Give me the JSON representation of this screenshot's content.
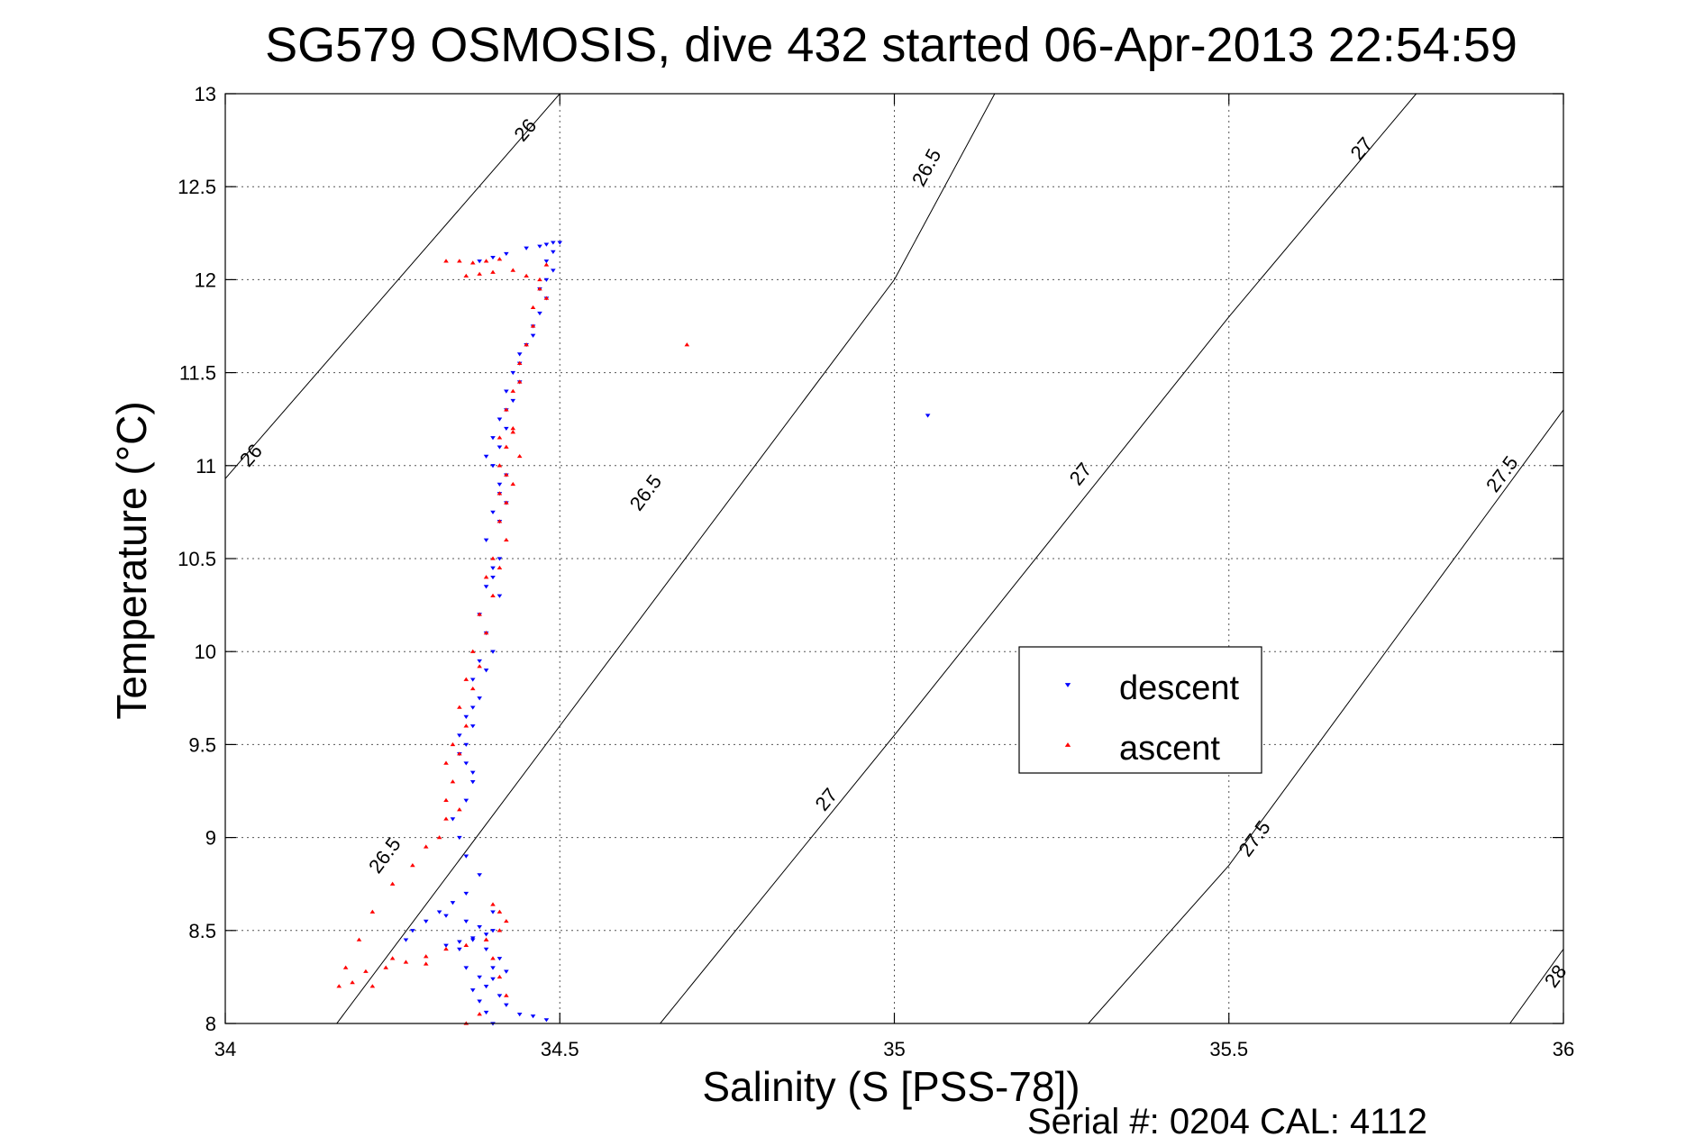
{
  "chart_data": {
    "type": "scatter",
    "title": "SG579 OSMOSIS, dive 432 started 06-Apr-2013 22:54:59",
    "xlabel": "Salinity (S [PSS-78])",
    "ylabel": "Temperature (°C)",
    "xlim": [
      34,
      36
    ],
    "ylim": [
      8,
      13
    ],
    "xticks": [
      34,
      34.5,
      35,
      35.5,
      36
    ],
    "xtick_labels": [
      "34",
      "34.5",
      "35",
      "35.5",
      "36"
    ],
    "yticks": [
      8,
      8.5,
      9,
      9.5,
      10,
      10.5,
      11,
      11.5,
      12,
      12.5,
      13
    ],
    "ytick_labels": [
      "8",
      "8.5",
      "9",
      "9.5",
      "10",
      "10.5",
      "11",
      "11.5",
      "12",
      "12.5",
      "13"
    ],
    "grid": true,
    "legend_position": "center-right",
    "footer": "Serial #: 0204  CAL: 4112",
    "density_contours": [
      {
        "label": "26",
        "points": [
          [
            34.0,
            10.93
          ],
          [
            34.5,
            13.0
          ]
        ],
        "label_positions": [
          [
            34.04,
            11.05
          ],
          [
            34.45,
            12.8
          ]
        ]
      },
      {
        "label": "26.5",
        "points": [
          [
            34.0,
            7.2
          ],
          [
            34.5,
            9.6
          ],
          [
            35.0,
            12.0
          ],
          [
            35.15,
            13.0
          ]
        ],
        "label_positions": [
          [
            34.24,
            8.9
          ],
          [
            34.63,
            10.85
          ],
          [
            35.05,
            12.6
          ]
        ]
      },
      {
        "label": "27",
        "points": [
          [
            34.65,
            8.0
          ],
          [
            35.0,
            9.55
          ],
          [
            35.5,
            11.8
          ],
          [
            35.78,
            13.0
          ]
        ],
        "label_positions": [
          [
            34.9,
            9.2
          ],
          [
            35.28,
            10.95
          ],
          [
            35.7,
            12.7
          ]
        ]
      },
      {
        "label": "27.5",
        "points": [
          [
            35.29,
            8.0
          ],
          [
            35.5,
            8.85
          ],
          [
            36.0,
            11.3
          ]
        ],
        "label_positions": [
          [
            35.54,
            8.99
          ],
          [
            35.91,
            10.95
          ]
        ]
      },
      {
        "label": "28",
        "points": [
          [
            35.92,
            8.0
          ],
          [
            36.0,
            8.4
          ]
        ],
        "label_positions": [
          [
            35.99,
            8.25
          ]
        ]
      }
    ],
    "series": [
      {
        "name": "descent",
        "color": "#0000ff",
        "marker": "triangle-down",
        "x": [
          34.5,
          34.49,
          34.48,
          34.47,
          34.45,
          34.42,
          34.4,
          34.38,
          34.49,
          34.48,
          34.49,
          34.48,
          34.47,
          34.48,
          34.47,
          34.46,
          34.46,
          34.45,
          34.44,
          34.44,
          34.43,
          34.44,
          34.42,
          34.43,
          34.42,
          34.41,
          34.42,
          34.4,
          34.41,
          34.39,
          34.4,
          34.42,
          34.41,
          34.41,
          34.42,
          34.4,
          34.41,
          34.39,
          34.41,
          34.4,
          34.4,
          34.39,
          34.41,
          34.38,
          34.39,
          34.4,
          34.38,
          34.39,
          34.37,
          34.38,
          34.37,
          34.36,
          34.37,
          34.35,
          34.36,
          34.35,
          34.36,
          34.37,
          34.37,
          34.36,
          34.34,
          34.35,
          34.36,
          34.38,
          34.36,
          34.34,
          34.32,
          34.3,
          34.28,
          34.27,
          34.33,
          34.35,
          34.37,
          34.39,
          34.4,
          34.36,
          34.33,
          34.4,
          34.38,
          34.37,
          34.39,
          34.41,
          34.4,
          34.38,
          34.39,
          34.41,
          34.42,
          34.44,
          34.46,
          34.48,
          34.4,
          34.39,
          34.38,
          34.37,
          34.36,
          34.35,
          34.42,
          34.4,
          35.05
        ],
        "y": [
          12.2,
          12.2,
          12.19,
          12.18,
          12.17,
          12.14,
          12.12,
          12.1,
          12.15,
          12.1,
          12.05,
          12.0,
          11.95,
          11.9,
          11.82,
          11.75,
          11.7,
          11.65,
          11.6,
          11.55,
          11.5,
          11.45,
          11.4,
          11.35,
          11.3,
          11.25,
          11.2,
          11.15,
          11.1,
          11.05,
          11.0,
          10.95,
          10.9,
          10.85,
          10.8,
          10.75,
          10.7,
          10.6,
          10.5,
          10.45,
          10.4,
          10.35,
          10.3,
          10.2,
          10.1,
          10.0,
          9.95,
          9.9,
          9.85,
          9.75,
          9.7,
          9.65,
          9.6,
          9.55,
          9.5,
          9.45,
          9.4,
          9.35,
          9.3,
          9.2,
          9.1,
          9.0,
          8.9,
          8.8,
          8.7,
          8.65,
          8.6,
          8.55,
          8.5,
          8.45,
          8.42,
          8.44,
          8.46,
          8.48,
          8.5,
          8.55,
          8.58,
          8.6,
          8.52,
          8.45,
          8.4,
          8.35,
          8.3,
          8.25,
          8.2,
          8.15,
          8.1,
          8.05,
          8.04,
          8.02,
          8.0,
          8.06,
          8.12,
          8.18,
          8.3,
          8.4,
          8.28,
          8.24,
          11.27
        ]
      },
      {
        "name": "ascent",
        "color": "#ff0000",
        "marker": "triangle-up",
        "x": [
          34.33,
          34.35,
          34.37,
          34.39,
          34.41,
          34.36,
          34.38,
          34.4,
          34.43,
          34.45,
          34.47,
          34.48,
          34.47,
          34.46,
          34.48,
          34.46,
          34.45,
          34.44,
          34.44,
          34.43,
          34.42,
          34.43,
          34.41,
          34.42,
          34.43,
          34.44,
          34.41,
          34.42,
          34.43,
          34.41,
          34.42,
          34.41,
          34.42,
          34.4,
          34.41,
          34.39,
          34.4,
          34.38,
          34.39,
          34.37,
          34.38,
          34.36,
          34.37,
          34.35,
          34.36,
          34.34,
          34.35,
          34.33,
          34.34,
          34.33,
          34.35,
          34.33,
          34.32,
          34.3,
          34.28,
          34.25,
          34.22,
          34.2,
          34.18,
          34.17,
          34.19,
          34.21,
          34.24,
          34.27,
          34.3,
          34.33,
          34.36,
          34.39,
          34.41,
          34.42,
          34.41,
          34.4,
          34.39,
          34.4,
          34.41,
          34.42,
          34.38,
          34.36,
          34.3,
          34.25,
          34.22,
          34.69
        ],
        "y": [
          12.1,
          12.1,
          12.09,
          12.1,
          12.11,
          12.02,
          12.03,
          12.04,
          12.05,
          12.02,
          12.0,
          12.08,
          11.95,
          11.85,
          11.9,
          11.75,
          11.65,
          11.55,
          11.45,
          11.4,
          11.3,
          11.2,
          11.15,
          11.1,
          11.18,
          11.05,
          11.0,
          10.95,
          10.9,
          10.85,
          10.8,
          10.7,
          10.6,
          10.5,
          10.45,
          10.4,
          10.3,
          10.2,
          10.1,
          10.0,
          9.92,
          9.85,
          9.8,
          9.7,
          9.6,
          9.5,
          9.45,
          9.4,
          9.3,
          9.2,
          9.15,
          9.1,
          9.0,
          8.95,
          8.85,
          8.75,
          8.6,
          8.45,
          8.3,
          8.2,
          8.22,
          8.28,
          8.3,
          8.33,
          8.36,
          8.4,
          8.42,
          8.45,
          8.5,
          8.55,
          8.6,
          8.64,
          8.45,
          8.35,
          8.25,
          8.15,
          8.05,
          8.0,
          8.32,
          8.35,
          8.2,
          11.65
        ]
      }
    ]
  }
}
